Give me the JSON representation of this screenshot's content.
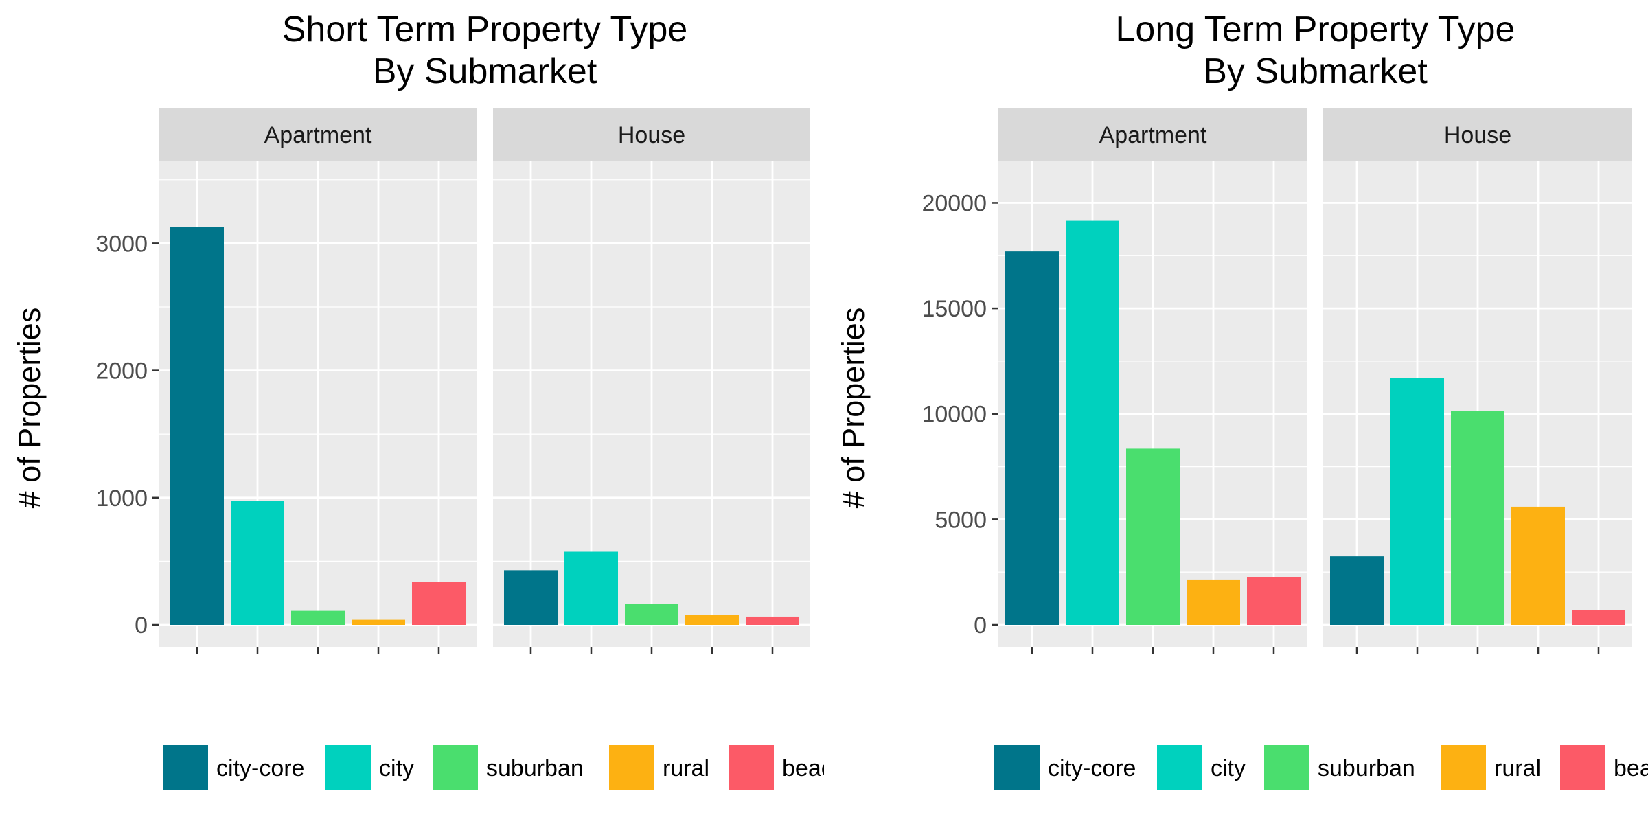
{
  "colors": {
    "city-core": "#00758a",
    "city": "#00d1be",
    "suburban": "#4ade6e",
    "rural": "#fdb112",
    "beach": "#fc5a67",
    "panel_bg": "#ebebeb",
    "strip_bg": "#d9d9d9",
    "grid": "#ffffff"
  },
  "chart_data": [
    {
      "type": "bar",
      "title": [
        "Short Term Property Type",
        "By Submarket"
      ],
      "ylabel": "# of Properties",
      "xlabel": "",
      "ylim": [
        0,
        3650
      ],
      "yticks": [
        0,
        1000,
        2000,
        3000
      ],
      "facets": [
        "Apartment",
        "House"
      ],
      "categories": [
        "city-core",
        "city",
        "suburban",
        "rural",
        "beach"
      ],
      "series": [
        {
          "facet": "Apartment",
          "values": [
            3130,
            975,
            110,
            40,
            340
          ]
        },
        {
          "facet": "House",
          "values": [
            430,
            575,
            165,
            80,
            65
          ]
        }
      ],
      "legend": {
        "position": "bottom",
        "entries": [
          "city-core",
          "city",
          "suburban",
          "rural",
          "beach"
        ]
      },
      "grid": true
    },
    {
      "type": "bar",
      "title": [
        "Long Term Property Type",
        "By Submarket"
      ],
      "ylabel": "# of Properties",
      "xlabel": "",
      "ylim": [
        0,
        22000
      ],
      "yticks": [
        0,
        5000,
        10000,
        15000,
        20000
      ],
      "facets": [
        "Apartment",
        "House"
      ],
      "categories": [
        "city-core",
        "city",
        "suburban",
        "rural",
        "beach"
      ],
      "series": [
        {
          "facet": "Apartment",
          "values": [
            17700,
            19150,
            8350,
            2150,
            2250
          ]
        },
        {
          "facet": "House",
          "values": [
            3250,
            11700,
            10150,
            5600,
            700
          ]
        }
      ],
      "legend": {
        "position": "bottom",
        "entries": [
          "city-core",
          "city",
          "suburban",
          "rural",
          "beach"
        ]
      },
      "grid": true
    }
  ]
}
